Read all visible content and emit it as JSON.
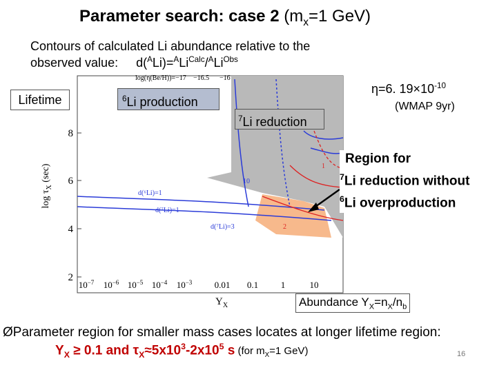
{
  "title": {
    "bold": "Parameter search: case 2",
    "open": " (m",
    "sub": "x",
    "close": "=1 GeV)"
  },
  "intro": {
    "line1": "Contours of calculated Li abundance relative to the",
    "label": "observed value:",
    "f1": "d(",
    "s1": "A",
    "f2": "Li)=",
    "s2": "A",
    "f3": "Li",
    "s3": "Calc",
    "f4": "/",
    "s4": "A",
    "f5": "Li",
    "s5": "Obs"
  },
  "boxes": {
    "lifetime": "Lifetime",
    "li6_sup": "6",
    "li6": "Li production",
    "li7_sup": "7",
    "li7": "Li reduction"
  },
  "eta": {
    "sym": "η=6. 19×10",
    "exp": "-10",
    "source": "(WMAP 9yr)"
  },
  "region": {
    "line1": "Region for",
    "sup1": "7",
    "line2": "Li reduction without",
    "sup2": "6",
    "line3": "Li overproduction"
  },
  "abundance": {
    "a": "Abundance Y",
    "s1": "X",
    "b": "=n",
    "s2": "X",
    "c": "/n",
    "s3": "b"
  },
  "plot": {
    "ylabel": "log τ",
    "ysub": "X",
    "yunit": " (sec)",
    "xlabel": "Y",
    "xsub": "X",
    "yticks": [
      "2",
      "4",
      "6",
      "8"
    ],
    "xticks": [
      {
        "base": "10",
        "exp": "−7"
      },
      {
        "base": "10",
        "exp": "−6"
      },
      {
        "base": "10",
        "exp": "−5"
      },
      {
        "base": "10",
        "exp": "−4"
      },
      {
        "base": "10",
        "exp": "−3"
      },
      {
        "base": "0.01",
        "exp": ""
      },
      {
        "base": "0.1",
        "exp": ""
      },
      {
        "base": "1",
        "exp": ""
      },
      {
        "base": "10",
        "exp": ""
      }
    ],
    "contours": {
      "be": "log(η(Be/H))=−17",
      "be2": "−16.5",
      "be3": "−16",
      "c10": "10",
      "c1": "1",
      "c2": "2",
      "d6": "d(⁶Li)=1",
      "d7a": "d(⁷Li)=3",
      "d7b": "d(⁷Li)=1"
    }
  },
  "bullet": {
    "mark": "Ø",
    "text": "Parameter region for smaller mass cases locates at longer lifetime region:"
  },
  "footer": {
    "y": "Y",
    "ysub": "X",
    "cond": " ≥ 0.1 and τ",
    "tsub": "X",
    "range": "≈5x10",
    "e1": "3",
    "mid": "-2x10",
    "e2": "5",
    "unit": " s",
    "note": " (for m",
    "nsub": "X",
    "note2": "=1 GeV)"
  },
  "page": "16"
}
